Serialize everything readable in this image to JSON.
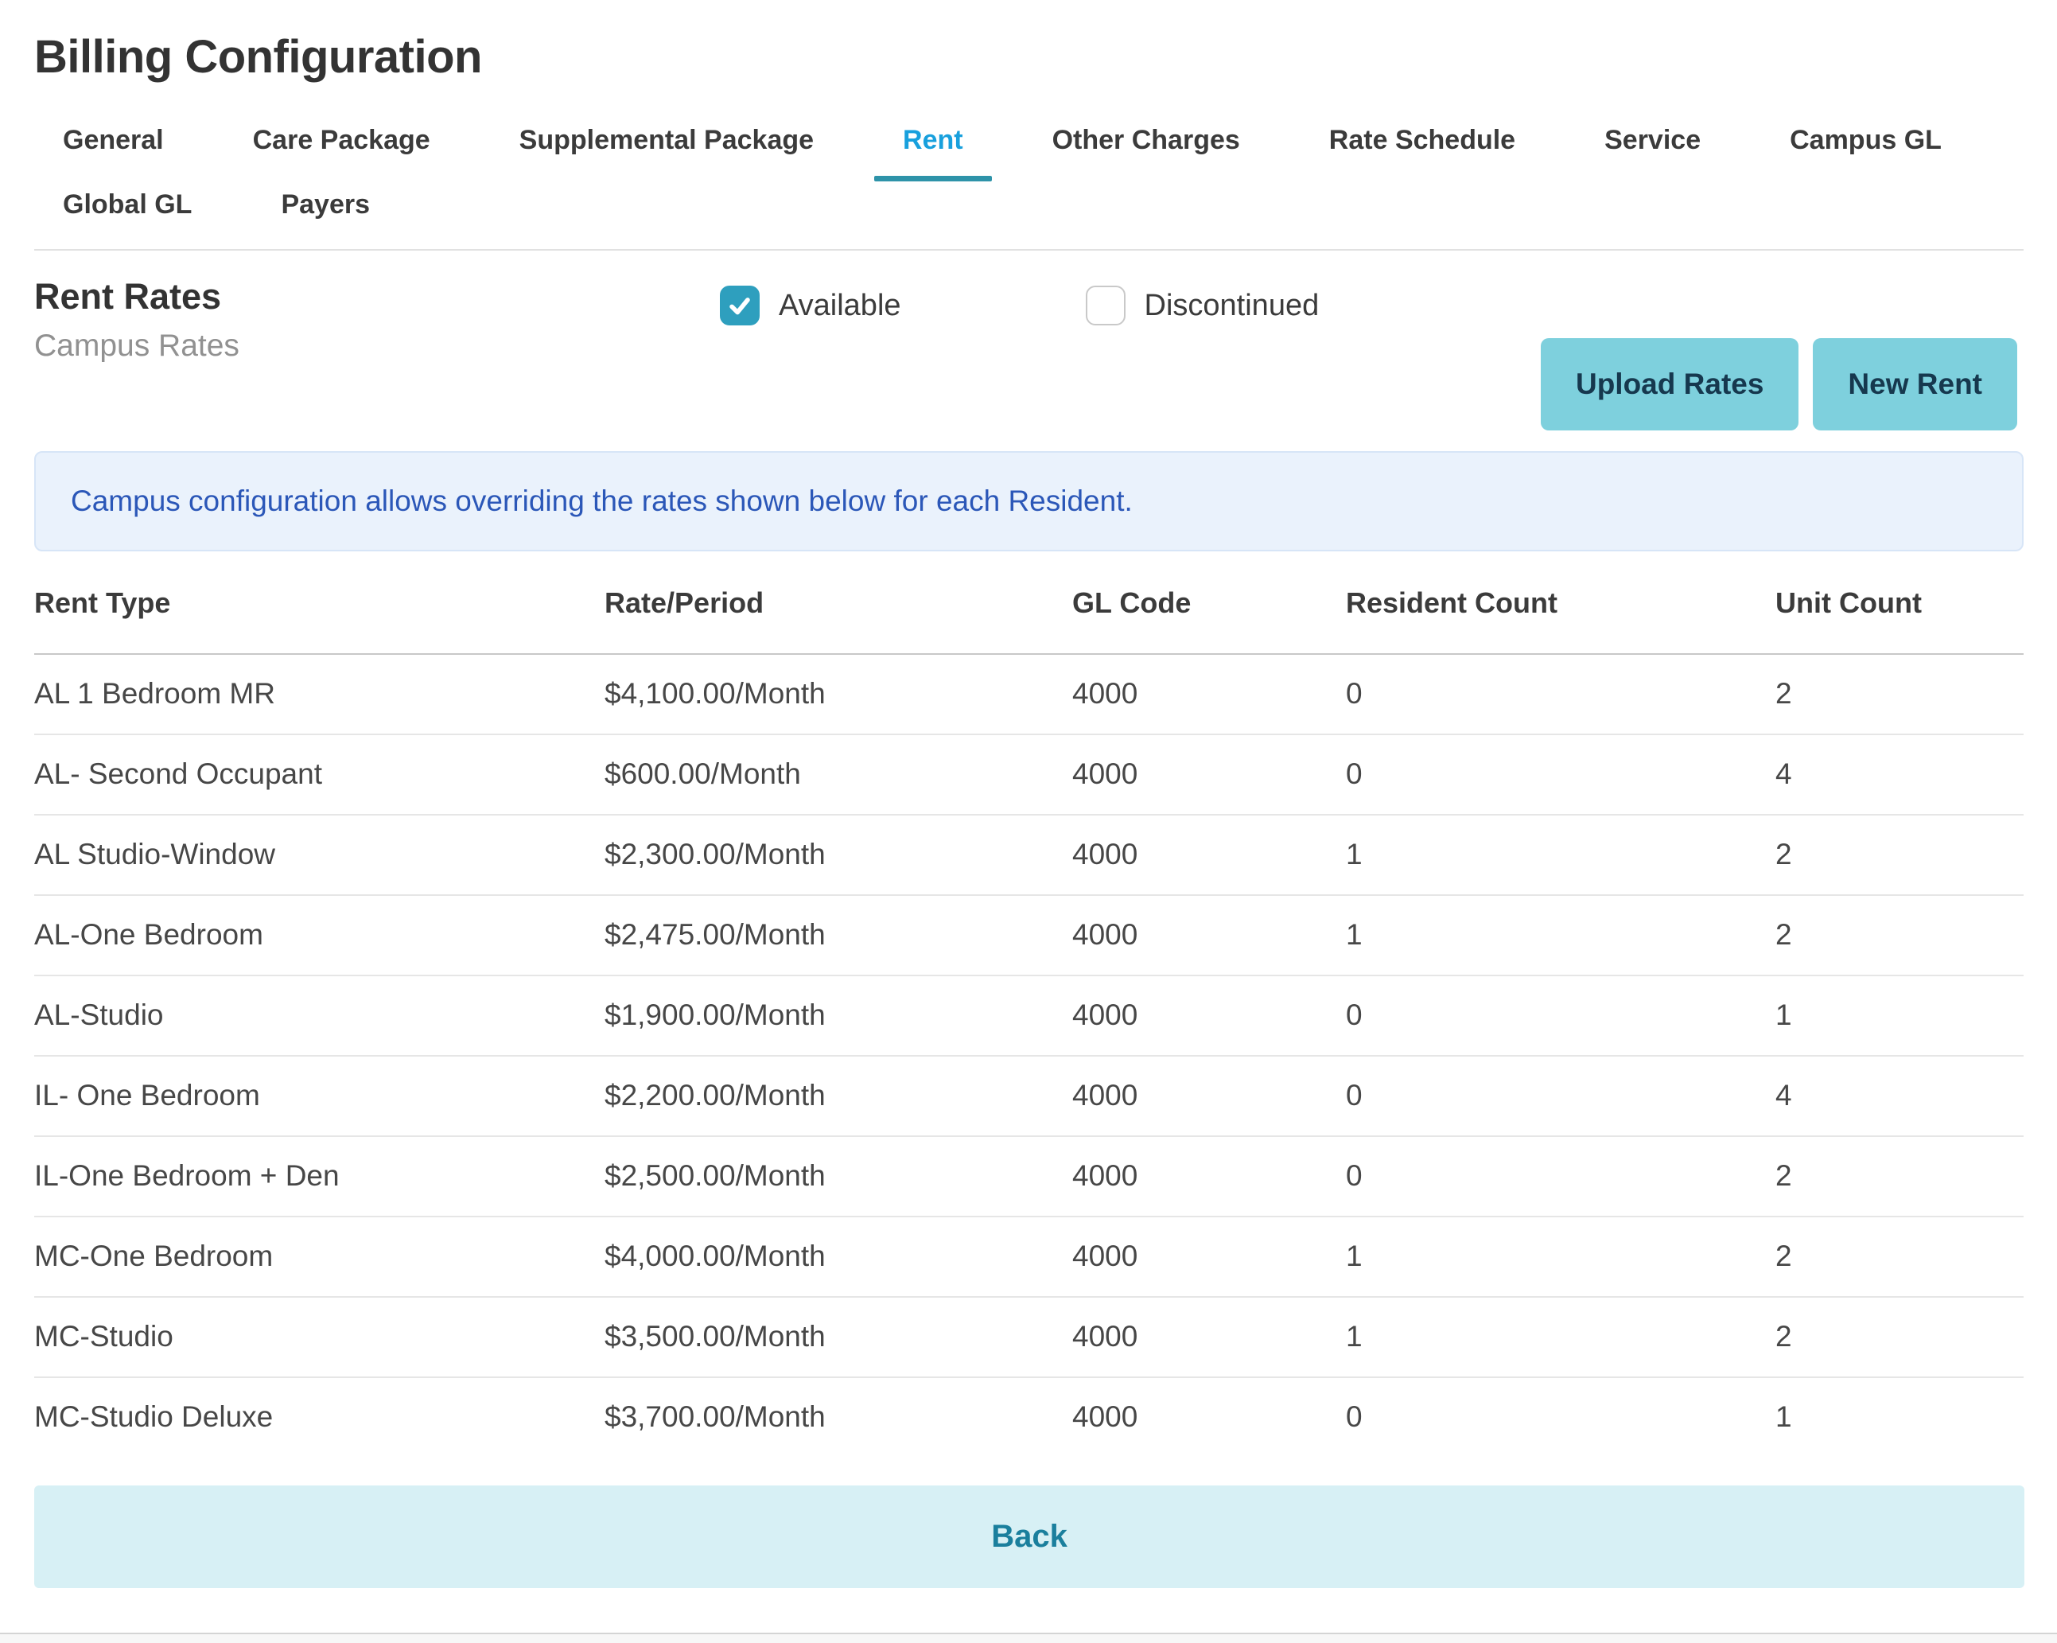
{
  "page_title": "Billing Configuration",
  "tabs": {
    "items": [
      {
        "label": "General",
        "active": false
      },
      {
        "label": "Care Package",
        "active": false
      },
      {
        "label": "Supplemental Package",
        "active": false
      },
      {
        "label": "Rent",
        "active": true
      },
      {
        "label": "Other Charges",
        "active": false
      },
      {
        "label": "Rate Schedule",
        "active": false
      },
      {
        "label": "Service",
        "active": false
      },
      {
        "label": "Campus GL",
        "active": false
      },
      {
        "label": "Global GL",
        "active": false
      },
      {
        "label": "Payers",
        "active": false
      }
    ]
  },
  "section": {
    "title": "Rent Rates",
    "subtitle": "Campus Rates",
    "filters": [
      {
        "label": "Available",
        "checked": true
      },
      {
        "label": "Discontinued",
        "checked": false
      }
    ],
    "buttons": {
      "upload": "Upload Rates",
      "new_rent": "New Rent"
    }
  },
  "banner": {
    "text": "Campus configuration allows overriding the rates shown below for each Resident."
  },
  "table": {
    "columns": [
      "Rent Type",
      "Rate/Period",
      "GL Code",
      "Resident Count",
      "Unit Count"
    ],
    "rows": [
      [
        "AL 1 Bedroom MR",
        "$4,100.00/Month",
        "4000",
        "0",
        "2"
      ],
      [
        "AL- Second Occupant",
        "$600.00/Month",
        "4000",
        "0",
        "4"
      ],
      [
        "AL Studio-Window",
        "$2,300.00/Month",
        "4000",
        "1",
        "2"
      ],
      [
        "AL-One Bedroom",
        "$2,475.00/Month",
        "4000",
        "1",
        "2"
      ],
      [
        "AL-Studio",
        "$1,900.00/Month",
        "4000",
        "0",
        "1"
      ],
      [
        "IL- One Bedroom",
        "$2,200.00/Month",
        "4000",
        "0",
        "4"
      ],
      [
        "IL-One Bedroom + Den",
        "$2,500.00/Month",
        "4000",
        "0",
        "2"
      ],
      [
        "MC-One Bedroom",
        "$4,000.00/Month",
        "4000",
        "1",
        "2"
      ],
      [
        "MC-Studio",
        "$3,500.00/Month",
        "4000",
        "1",
        "2"
      ],
      [
        "MC-Studio Deluxe",
        "$3,700.00/Month",
        "4000",
        "0",
        "1"
      ]
    ]
  },
  "footer": {
    "back_label": "Back"
  },
  "colors": {
    "active_tab": "#18a0dd",
    "tab_underline": "#2e93a9",
    "checkbox_checked": "#2e9fbe",
    "button_bg": "#7ed0dd",
    "button_text": "#16384e",
    "banner_bg": "#eaf2fc",
    "banner_border": "#d7e5f7",
    "banner_text": "#2b57b8",
    "back_bg": "#d7f0f5",
    "back_text": "#1a7f9d"
  }
}
